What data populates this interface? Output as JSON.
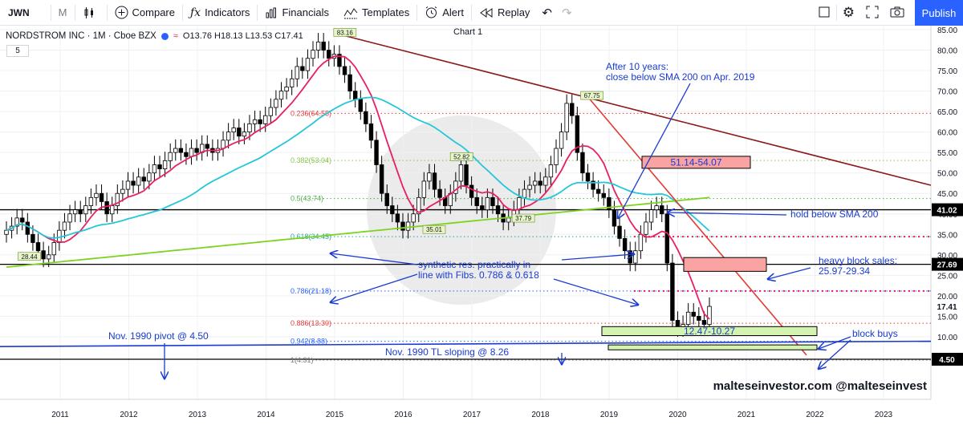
{
  "toolbar": {
    "symbol": "JWN",
    "interval": "M",
    "compare": "Compare",
    "indicators": "Indicators",
    "financials": "Financials",
    "templates": "Templates",
    "alert": "Alert",
    "replay": "Replay",
    "publish": "Publish"
  },
  "legend": {
    "name": "NORDSTROM INC · 1M · Cboe BZX",
    "ohlc": "O13.76 H18.13 L13.53 C17.41",
    "interval_box": "5"
  },
  "chart_title": "Chart 1",
  "chart_data": {
    "type": "candlestick",
    "title": "NORDSTROM INC · 1M · Cboe BZX",
    "ylim": [
      0,
      87
    ],
    "x_ticks": [
      "2011",
      "2012",
      "2013",
      "2014",
      "2015",
      "2016",
      "2017",
      "2018",
      "2019",
      "2020",
      "2021",
      "2022",
      "2023"
    ],
    "y_ticks": [
      10,
      15,
      20,
      25,
      30,
      35,
      40,
      45,
      50,
      55,
      60,
      65,
      70,
      75,
      80,
      85
    ],
    "price_labels": [
      {
        "text": "41.02",
        "value": 41.02
      },
      {
        "text": "27.69",
        "value": 27.69
      },
      {
        "text": "17.41",
        "value": 17.41
      },
      {
        "text": "4.50",
        "value": 4.5
      }
    ],
    "candle_closes": [
      36,
      37,
      39,
      38,
      35,
      33,
      31,
      29,
      30,
      33,
      36,
      38,
      40,
      41,
      40,
      42,
      44,
      45,
      43,
      40,
      42,
      45,
      46,
      48,
      47,
      49,
      48,
      50,
      52,
      51,
      53,
      55,
      56,
      55,
      54,
      56,
      55,
      57,
      56,
      55,
      56,
      58,
      60,
      61,
      59,
      60,
      62,
      63,
      62,
      64,
      66,
      68,
      70,
      71,
      73,
      76,
      75,
      78,
      80,
      82,
      80,
      78,
      79,
      76,
      74,
      70,
      68,
      65,
      62,
      58,
      52,
      45,
      42,
      40,
      38,
      36,
      38,
      40,
      44,
      48,
      50,
      46,
      44,
      42,
      45,
      48,
      52,
      47,
      44,
      42,
      41,
      44,
      42,
      40,
      38,
      39,
      41,
      44,
      46,
      47,
      48,
      47,
      49,
      52,
      56,
      60,
      67,
      64,
      55,
      50,
      48,
      46,
      45,
      44,
      41,
      37,
      34,
      31,
      28,
      31,
      35,
      38,
      41,
      42,
      40,
      28,
      14,
      12,
      13,
      16,
      15,
      14,
      13,
      17.41
    ],
    "fib_levels": [
      {
        "label": "0.236(64.55)",
        "value": 64.55
      },
      {
        "label": "0.382(53.04)",
        "value": 53.04
      },
      {
        "label": "0.5(43.74)",
        "value": 43.74
      },
      {
        "label": "0.618(34.45)",
        "value": 34.45
      },
      {
        "label": "0.786(21.18)",
        "value": 21.18
      },
      {
        "label": "0.886(13.30)",
        "value": 13.3
      },
      {
        "label": "0.942(8.88)",
        "value": 8.88
      },
      {
        "label": "1(4.31)",
        "value": 4.31
      }
    ],
    "point_labels": [
      {
        "text": "83.16",
        "x": 2015.15,
        "value": 83.16
      },
      {
        "text": "28.44",
        "x": 2010.55,
        "value": 28.44
      },
      {
        "text": "35.01",
        "x": 2016.45,
        "value": 35.01
      },
      {
        "text": "52.82",
        "x": 2016.85,
        "value": 52.82
      },
      {
        "text": "37.79",
        "x": 2017.75,
        "value": 37.79
      },
      {
        "text": "67.75",
        "x": 2018.75,
        "value": 67.75
      }
    ],
    "zones": [
      {
        "label": "51.14-54.07",
        "value_range": [
          51.14,
          54.07
        ],
        "color": "#f9a3a3"
      },
      {
        "label": "",
        "value_range": [
          25.97,
          29.34
        ],
        "color": "#f9a3a3"
      },
      {
        "label": "12.47-10.27",
        "value_range": [
          10.27,
          12.47
        ],
        "color": "#d4f3b0"
      },
      {
        "label": "",
        "value_range": [
          6.8,
          8.0
        ],
        "color": "#d4f3b0"
      }
    ],
    "annotations": [
      "After 10 years:",
      "close below SMA 200 on Apr. 2019",
      "hold below SMA 200",
      "heavy block sales:",
      "25.97-29.34",
      "synthetic res. practically in",
      "line with Fibs. 0.786 & 0.618",
      "Nov. 1990 pivot @ 4.50",
      "Nov. 1990 TL sloping @ 8.26",
      "block buys"
    ],
    "watermark": "malteseinvestor.com @malteseinvest"
  },
  "colors": {
    "up": "#ffffff",
    "down": "#000000",
    "sma_short": "#e91e63",
    "sma_mid": "#26c6da",
    "sma_200": "#7ed321",
    "annotation": "#1a3bd1",
    "brand": "#2962ff"
  }
}
